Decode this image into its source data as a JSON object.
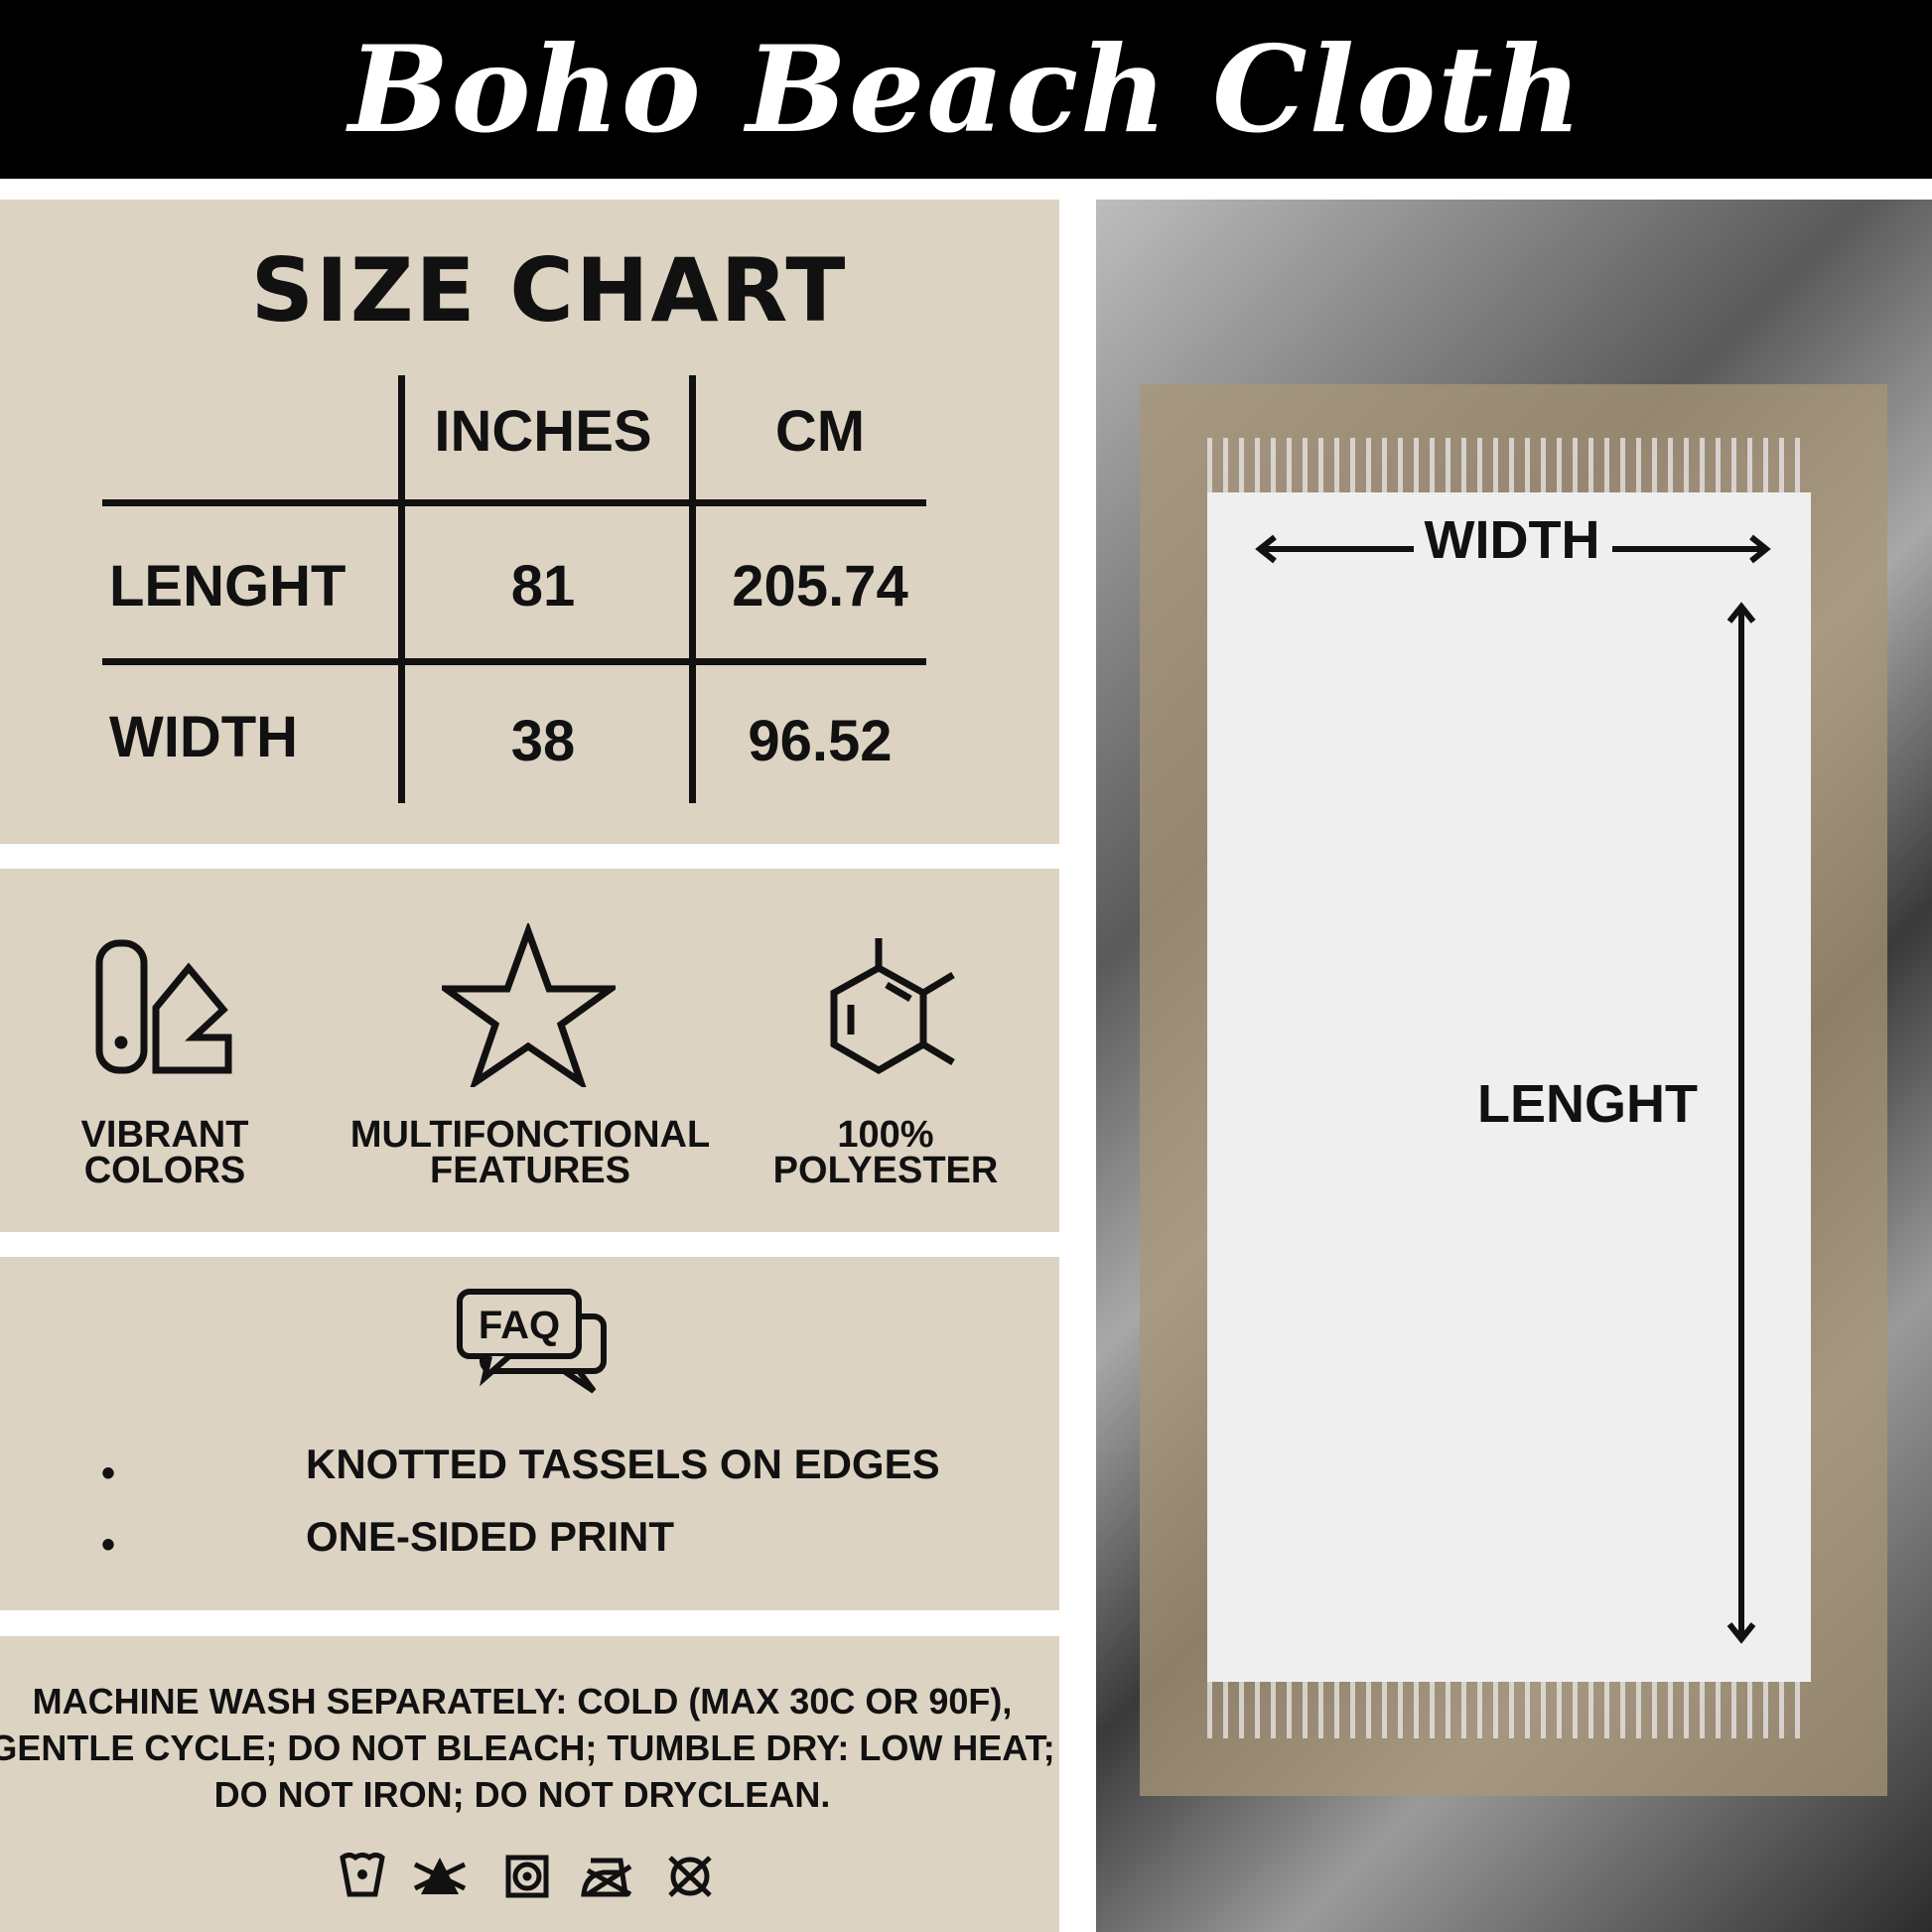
{
  "title": "Boho Beach Cloth",
  "size_chart": {
    "heading": "SIZE CHART",
    "columns": [
      "INCHES",
      "CM"
    ],
    "rows": [
      {
        "label": "LENGHT",
        "inches": "81",
        "cm": "205.74"
      },
      {
        "label": "WIDTH",
        "inches": "38",
        "cm": "96.52"
      }
    ]
  },
  "features": [
    {
      "icon": "color-swatch-icon",
      "line1": "VIBRANT",
      "line2": "COLORS"
    },
    {
      "icon": "star-icon",
      "line1": "MULTIFONCTIONAL",
      "line2": "FEATURES"
    },
    {
      "icon": "polyester-molecule-icon",
      "line1": "100%",
      "line2": "POLYESTER"
    }
  ],
  "faq": {
    "icon_text": "FAQ",
    "items": [
      "KNOTTED TASSELS ON EDGES",
      "ONE-SIDED PRINT"
    ]
  },
  "care": {
    "lines": [
      "MACHINE WASH SEPARATELY: COLD (MAX 30C OR 90F),",
      "GENTLE CYCLE; DO NOT BLEACH; TUMBLE DRY: LOW HEAT;",
      "DO NOT IRON; DO NOT DRYCLEAN."
    ],
    "icons": [
      "wash-cold-icon",
      "do-not-bleach-icon",
      "tumble-dry-low-icon",
      "do-not-iron-icon",
      "do-not-dryclean-icon"
    ]
  },
  "diagram": {
    "width_label": "WIDTH",
    "length_label": "LENGHT"
  },
  "colors": {
    "panel": "#ddd3c3",
    "header": "#000000"
  }
}
